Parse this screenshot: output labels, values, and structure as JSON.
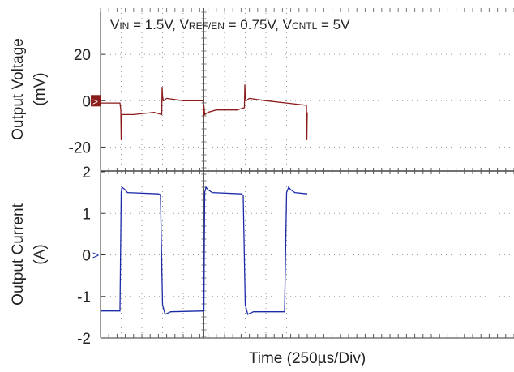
{
  "chart_data": [
    {
      "type": "line",
      "ylabel_line1": "Output Voltage",
      "ylabel_line2": "(mV)",
      "ylim": [
        -30,
        40
      ],
      "yticks": [
        "20",
        "0",
        "-20"
      ],
      "yticks_values": [
        20,
        0,
        -20
      ],
      "annotation": {
        "v1": "V",
        "v1_sub": "IN",
        "v1_val": " = 1.5V, ",
        "v2": "V",
        "v2_sub": "REF/EN",
        "v2_val": " = 0.75V, ",
        "v3": "V",
        "v3_sub": "CNTL",
        "v3_val": " = 5V"
      },
      "series": [
        {
          "color": "#8b1a1a",
          "x": [
            0,
            0.47,
            0.49,
            0.5,
            0.52,
            0.6,
            0.8,
            1.3,
            1.48,
            1.49,
            1.5,
            1.52,
            1.6,
            2.0,
            2.48,
            2.49,
            2.5,
            2.52,
            2.6,
            2.8,
            3.3,
            3.48,
            3.49,
            3.5,
            3.52,
            3.6,
            4.0,
            4.5,
            4.98,
            4.99,
            5.0
          ],
          "values": [
            -1,
            -1,
            -4,
            -17,
            -6,
            -6,
            -6,
            -5,
            -6,
            6,
            2,
            0,
            1,
            0,
            0,
            -7,
            -2,
            -6,
            -5,
            -4,
            -4,
            -3,
            7,
            2,
            0,
            1,
            0,
            -1,
            -2,
            -17,
            -5
          ]
        }
      ],
      "marker_color": "#8b1a1a"
    },
    {
      "type": "line",
      "ylabel_line1": "Output Current",
      "ylabel_line2": "(A)",
      "ylim": [
        -2,
        2
      ],
      "yticks": [
        "2",
        "1",
        "0",
        "-1",
        "-2"
      ],
      "yticks_values": [
        2,
        1,
        0,
        -1,
        -2
      ],
      "series": [
        {
          "color": "#1a2aa8",
          "x": [
            0,
            0.47,
            0.5,
            0.52,
            0.58,
            0.65,
            1.4,
            1.45,
            1.5,
            1.56,
            1.7,
            2.5,
            2.52,
            2.55,
            2.6,
            2.7,
            3.4,
            3.45,
            3.5,
            3.56,
            3.7,
            4.45,
            4.5,
            4.55,
            4.6,
            4.7,
            5.0
          ],
          "values": [
            -1.35,
            -1.35,
            1.5,
            1.63,
            1.58,
            1.5,
            1.47,
            1.45,
            -1.2,
            -1.43,
            -1.37,
            -1.35,
            1.5,
            1.63,
            1.57,
            1.5,
            1.47,
            1.44,
            -1.2,
            -1.43,
            -1.37,
            -1.37,
            1.5,
            1.63,
            1.57,
            1.5,
            1.47
          ]
        }
      ],
      "marker_color": "#1a2aa8"
    }
  ],
  "xlabel": "Time  (250µs/Div)",
  "x_divisions": 10
}
